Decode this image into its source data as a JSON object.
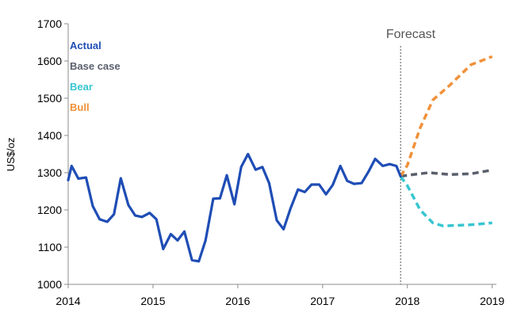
{
  "chart_data": {
    "type": "line",
    "ylabel": "US$/oz",
    "xlabel": "",
    "ylim": [
      1000,
      1700
    ],
    "xlim": [
      2014,
      2019.05
    ],
    "y_ticks": [
      "1000",
      "1100",
      "1200",
      "1300",
      "1400",
      "1500",
      "1600",
      "1700"
    ],
    "x_ticks": [
      "2014",
      "2015",
      "2016",
      "2017",
      "2018",
      "2019"
    ],
    "grid": false,
    "legend_position": "top-left",
    "forecast_label": "Forecast",
    "forecast_x": 2017.92,
    "series": [
      {
        "name": "Actual",
        "color": "#1f4db5",
        "style": "solid",
        "x": [
          2014.0,
          2014.04,
          2014.12,
          2014.21,
          2014.29,
          2014.37,
          2014.46,
          2014.54,
          2014.62,
          2014.71,
          2014.79,
          2014.87,
          2014.96,
          2015.04,
          2015.12,
          2015.21,
          2015.29,
          2015.37,
          2015.46,
          2015.54,
          2015.62,
          2015.71,
          2015.79,
          2015.87,
          2015.96,
          2016.04,
          2016.12,
          2016.21,
          2016.29,
          2016.37,
          2016.46,
          2016.54,
          2016.62,
          2016.71,
          2016.79,
          2016.87,
          2016.96,
          2017.04,
          2017.12,
          2017.21,
          2017.29,
          2017.37,
          2017.46,
          2017.54,
          2017.62,
          2017.71,
          2017.79,
          2017.87,
          2017.92
        ],
        "values": [
          1280,
          1318,
          1284,
          1287,
          1210,
          1175,
          1168,
          1188,
          1285,
          1213,
          1185,
          1181,
          1192,
          1175,
          1095,
          1135,
          1118,
          1142,
          1065,
          1062,
          1118,
          1230,
          1231,
          1293,
          1215,
          1315,
          1350,
          1308,
          1315,
          1272,
          1172,
          1148,
          1203,
          1255,
          1248,
          1268,
          1268,
          1242,
          1267,
          1318,
          1278,
          1270,
          1272,
          1302,
          1337,
          1318,
          1323,
          1318,
          1290
        ]
      },
      {
        "name": "Base case",
        "color": "#595f6b",
        "style": "dashed",
        "x": [
          2017.92,
          2018.0,
          2018.25,
          2018.5,
          2018.75,
          2019.0
        ],
        "values": [
          1290,
          1293,
          1300,
          1295,
          1297,
          1307
        ]
      },
      {
        "name": "Bear",
        "color": "#37c6d0",
        "style": "dashed",
        "x": [
          2017.92,
          2018.0,
          2018.15,
          2018.3,
          2018.42,
          2018.75,
          2019.0
        ],
        "values": [
          1290,
          1265,
          1200,
          1165,
          1157,
          1160,
          1165
        ]
      },
      {
        "name": "Bull",
        "color": "#f0913a",
        "style": "dashed",
        "x": [
          2017.92,
          2018.0,
          2018.15,
          2018.3,
          2018.5,
          2018.75,
          2019.0
        ],
        "values": [
          1290,
          1320,
          1420,
          1495,
          1535,
          1590,
          1612
        ]
      }
    ]
  }
}
